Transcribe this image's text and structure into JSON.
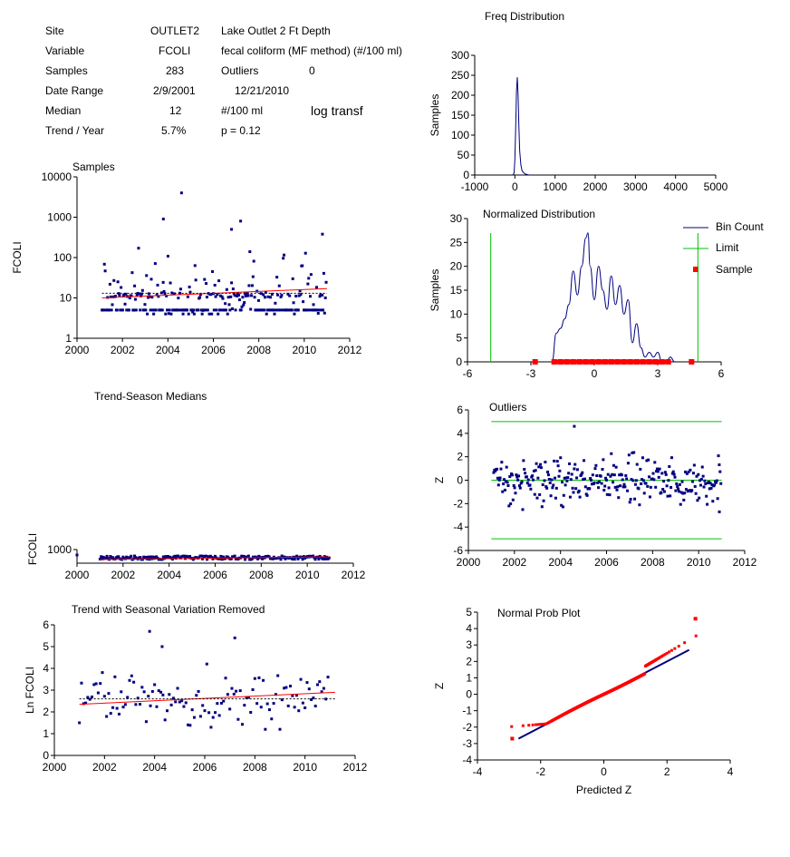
{
  "info": {
    "site_label": "Site",
    "site_code": "OUTLET2",
    "site_desc": "Lake Outlet 2 Ft Depth",
    "variable_label": "Variable",
    "variable_code": "FCOLI",
    "variable_desc": "fecal coliform (MF method) (#/100 ml)",
    "samples_label": "Samples",
    "samples_value": "283",
    "outliers_label": "Outliers",
    "outliers_value": "0",
    "date_range_label": "Date Range",
    "date_start": "2/9/2001",
    "date_end": "12/21/2010",
    "median_label": "Median",
    "median_value": "12",
    "median_unit": "#/100 ml",
    "transform": "log transf",
    "trend_label": "Trend / Year",
    "trend_value": "5.7%",
    "p_value": "p = 0.12"
  },
  "colors": {
    "points": "#000080",
    "trend": "#ff0000",
    "limit": "#00c000",
    "sample": "#ff0000",
    "curve": "#000080"
  },
  "chart_data": [
    {
      "id": "freq",
      "type": "line",
      "title": "Freq Distribution",
      "xlabel": "",
      "ylabel": "Samples",
      "xlim": [
        -1000,
        5000
      ],
      "ylim": [
        0,
        300
      ],
      "xticks": [
        "-1000",
        "0",
        "1000",
        "2000",
        "3000",
        "4000",
        "5000"
      ],
      "yticks": [
        "0",
        "50",
        "100",
        "150",
        "200",
        "250",
        "300"
      ],
      "x": [
        -50,
        -20,
        0,
        20,
        40,
        60,
        80,
        100,
        120,
        150,
        180,
        250,
        350
      ],
      "y": [
        0,
        5,
        40,
        120,
        210,
        245,
        200,
        120,
        60,
        25,
        10,
        3,
        0
      ]
    },
    {
      "id": "normdist",
      "type": "line",
      "title": "Normalized Distribution",
      "xlabel": "",
      "ylabel": "Samples",
      "xlim": [
        -6,
        6
      ],
      "ylim": [
        0,
        30
      ],
      "xticks": [
        "-6",
        "-3",
        "0",
        "3",
        "6"
      ],
      "yticks": [
        "0",
        "5",
        "10",
        "15",
        "20",
        "25",
        "30"
      ],
      "limits": [
        -4.9,
        4.9
      ],
      "legend": [
        "Bin Count",
        "Limit",
        "Sample"
      ],
      "x": [
        -2.0,
        -1.8,
        -1.6,
        -1.4,
        -1.2,
        -1.0,
        -0.8,
        -0.6,
        -0.4,
        -0.3,
        -0.2,
        0.0,
        0.2,
        0.4,
        0.6,
        0.8,
        1.0,
        1.2,
        1.4,
        1.6,
        1.8,
        2.0,
        2.2,
        2.4,
        2.6,
        2.8,
        3.0,
        3.2,
        3.4,
        3.6,
        3.8
      ],
      "y": [
        0,
        6,
        7,
        9,
        12,
        19,
        14,
        20,
        26,
        27,
        20,
        13,
        20,
        15,
        11,
        18,
        12,
        16,
        10,
        13,
        4,
        8,
        3,
        1,
        2,
        1,
        2,
        0,
        0,
        1,
        0
      ],
      "samples_x": [
        -2.8,
        -1.9,
        -1.6,
        -1.3,
        -1.0,
        -0.7,
        -0.4,
        -0.1,
        0.2,
        0.5,
        0.8,
        1.1,
        1.4,
        1.7,
        2.0,
        2.3,
        2.6,
        2.9,
        3.2,
        3.5,
        4.6
      ]
    },
    {
      "id": "samples",
      "type": "scatter",
      "title": "Samples",
      "xlabel": "",
      "ylabel": "FCOLI",
      "log": true,
      "xlim": [
        2000,
        2012
      ],
      "ylim": [
        1,
        10000
      ],
      "xticks": [
        "2000",
        "2002",
        "2004",
        "2006",
        "2008",
        "2010",
        "2012"
      ],
      "yticks": [
        "1",
        "10",
        "100",
        "1000",
        "10000"
      ],
      "trend": [
        [
          2001.1,
          10
        ],
        [
          2011.0,
          17
        ]
      ],
      "median_line": [
        [
          2001.1,
          13
        ],
        [
          2011.0,
          13
        ]
      ]
    },
    {
      "id": "seasonmed",
      "type": "scatter",
      "title": "Trend-Season Medians",
      "xlabel": "",
      "ylabel": "FCOLI",
      "xlim": [
        2000,
        2012
      ],
      "ylim": [
        0,
        1000
      ],
      "xticks": [
        "2000",
        "2002",
        "2004",
        "2006",
        "2008",
        "2010",
        "2012"
      ],
      "yticks": [
        "1000"
      ]
    },
    {
      "id": "outliers",
      "type": "scatter",
      "title": "Outliers",
      "xlabel": "",
      "ylabel": "Z",
      "xlim": [
        2000,
        2012
      ],
      "ylim": [
        -6,
        6
      ],
      "xticks": [
        "2000",
        "2002",
        "2004",
        "2006",
        "2008",
        "2010",
        "2012"
      ],
      "yticks": [
        "-6",
        "-4",
        "-2",
        "0",
        "2",
        "4",
        "6"
      ],
      "limits": [
        5,
        0,
        -5
      ]
    },
    {
      "id": "deseason",
      "type": "scatter",
      "title": "Trend with Seasonal Variation Removed",
      "xlabel": "",
      "ylabel": "Ln FCOLI",
      "xlim": [
        2000,
        2012
      ],
      "ylim": [
        0,
        6
      ],
      "xticks": [
        "2000",
        "2002",
        "2004",
        "2006",
        "2008",
        "2010",
        "2012"
      ],
      "yticks": [
        "0",
        "1",
        "2",
        "3",
        "4",
        "5",
        "6"
      ],
      "trend": [
        [
          2001.0,
          2.35
        ],
        [
          2011.2,
          2.9
        ]
      ],
      "median_line": [
        [
          2001.0,
          2.6
        ],
        [
          2011.2,
          2.6
        ]
      ]
    },
    {
      "id": "probplot",
      "type": "scatter",
      "title": "Normal Prob Plot",
      "xlabel": "Predicted Z",
      "ylabel": "Z",
      "xlim": [
        -4,
        4
      ],
      "ylim": [
        -4,
        5
      ],
      "xticks": [
        "-4",
        "-2",
        "0",
        "2",
        "4"
      ],
      "yticks": [
        "-4",
        "-3",
        "-2",
        "-1",
        "0",
        "1",
        "2",
        "3",
        "4",
        "5"
      ],
      "ref_line": [
        [
          -2.7,
          -2.7
        ],
        [
          2.7,
          2.7
        ]
      ]
    }
  ]
}
